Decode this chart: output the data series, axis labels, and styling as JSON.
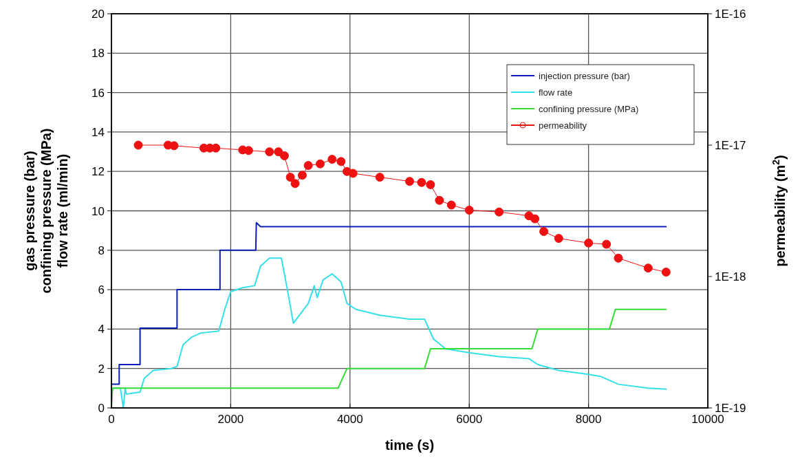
{
  "chart_data": {
    "type": "line",
    "xlabel": "time (s)",
    "ylabel": "gas pressure (bar)\nconfining pressure (MPa)\nflow rate  (ml/min)",
    "y2label": "permeability (m$^{2}$)",
    "xlim": [
      0,
      10000
    ],
    "xticks": [
      0,
      2000,
      4000,
      6000,
      8000,
      10000
    ],
    "ylim": [
      0,
      20
    ],
    "yticks": [
      0,
      2,
      4,
      6,
      8,
      10,
      12,
      14,
      16,
      18,
      20
    ],
    "y2lim": [
      1e-19,
      1e-16
    ],
    "y2ticks": [
      {
        "value": 1e-19,
        "label": "1E-19"
      },
      {
        "value": 1e-18,
        "label": "1E-18"
      },
      {
        "value": 1e-17,
        "label": "1E-17"
      },
      {
        "value": 1e-16,
        "label": "1E-16"
      }
    ],
    "log": "y2",
    "grid": true,
    "legend": "top right",
    "series": [
      {
        "name": "injection pressure (bar)",
        "color": "#0a1eb4",
        "x": [
          0,
          130,
          130,
          480,
          480,
          1100,
          1100,
          1820,
          1820,
          2420,
          2430,
          2500,
          9300
        ],
        "values": [
          1.2,
          1.2,
          2.2,
          2.2,
          4.05,
          4.05,
          6.0,
          6.0,
          8.0,
          8.0,
          9.4,
          9.2,
          9.2
        ]
      },
      {
        "name": "flow rate",
        "color": "#33e0e8",
        "x": [
          0,
          150,
          200,
          230,
          250,
          480,
          550,
          700,
          1000,
          1100,
          1200,
          1350,
          1500,
          1800,
          1900,
          2000,
          2200,
          2400,
          2500,
          2650,
          2850,
          2950,
          3050,
          3100,
          3300,
          3400,
          3450,
          3550,
          3700,
          3850,
          3950,
          4100,
          4500,
          5000,
          5250,
          5400,
          5600,
          6000,
          6500,
          7000,
          7150,
          7500,
          8000,
          8200,
          8500,
          9000,
          9300
        ],
        "values": [
          1.0,
          1.0,
          0,
          1.0,
          0.7,
          0.8,
          1.5,
          1.9,
          2.0,
          2.1,
          3.2,
          3.6,
          3.8,
          3.9,
          5.0,
          5.9,
          6.1,
          6.2,
          7.2,
          7.6,
          7.6,
          6.0,
          4.3,
          4.5,
          5.3,
          6.2,
          5.6,
          6.5,
          6.8,
          6.4,
          5.3,
          5.0,
          4.7,
          4.5,
          4.5,
          3.5,
          3.0,
          2.8,
          2.6,
          2.5,
          2.2,
          1.9,
          1.7,
          1.6,
          1.2,
          1.0,
          0.95
        ]
      },
      {
        "name": "confining pressure (MPa)",
        "color": "#33dd33",
        "x": [
          0,
          20,
          3800,
          3950,
          5250,
          5350,
          7050,
          7150,
          8350,
          8450,
          9300
        ],
        "values": [
          0,
          1.0,
          1.0,
          2.0,
          2.0,
          3.0,
          3.0,
          4.0,
          4.0,
          5.0,
          5.0
        ]
      },
      {
        "name": "permeability",
        "color": "#ee1111",
        "axis": "y2",
        "marker": "circle",
        "x": [
          450,
          950,
          1050,
          1550,
          1650,
          1750,
          2200,
          2300,
          2650,
          2800,
          2900,
          3000,
          3080,
          3200,
          3300,
          3500,
          3700,
          3850,
          3950,
          4050,
          4500,
          5000,
          5200,
          5350,
          5500,
          5700,
          6000,
          6500,
          7000,
          7100,
          7250,
          7500,
          8000,
          8300,
          8500,
          9000,
          9300
        ],
        "values": [
          1e-17,
          1e-17,
          9.9e-18,
          9.5e-18,
          9.5e-18,
          9.5e-18,
          9.2e-18,
          9.1e-18,
          8.9e-18,
          8.9e-18,
          8.3e-18,
          5.7e-18,
          5.1e-18,
          5.9e-18,
          7e-18,
          7.2e-18,
          7.8e-18,
          7.5e-18,
          6.3e-18,
          6.1e-18,
          5.7e-18,
          5.3e-18,
          5.2e-18,
          5e-18,
          3.8e-18,
          3.5e-18,
          3.2e-18,
          3.1e-18,
          2.9e-18,
          2.75e-18,
          2.2e-18,
          1.95e-18,
          1.8e-18,
          1.76e-18,
          1.38e-18,
          1.16e-18,
          1.08e-18
        ]
      }
    ]
  }
}
